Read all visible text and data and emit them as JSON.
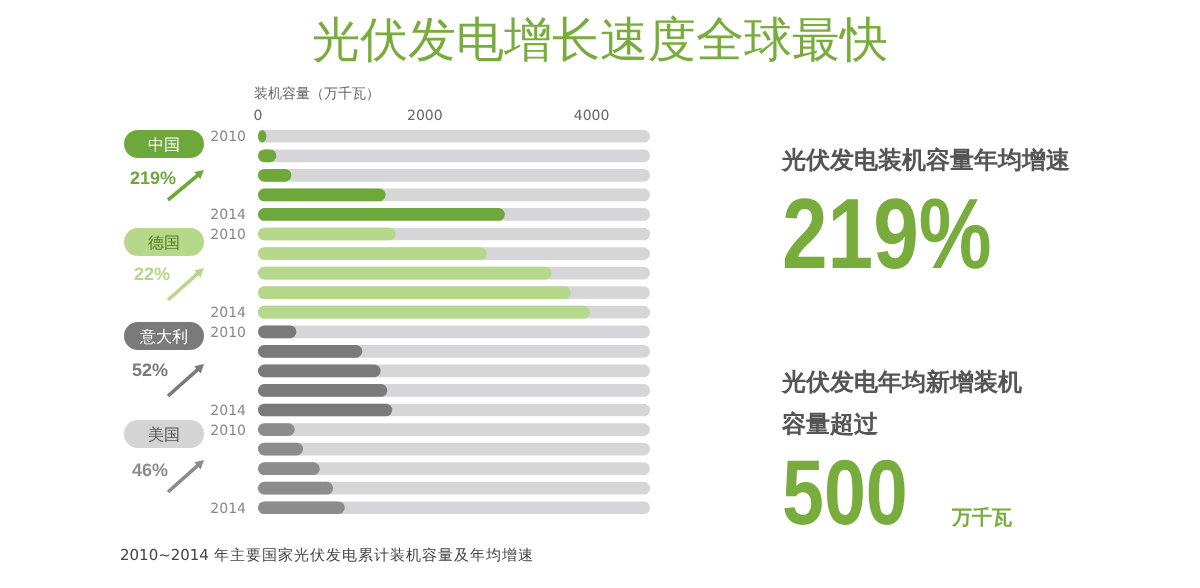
{
  "chart_data": {
    "type": "bar",
    "orientation": "horizontal",
    "title": "光伏发电增长速度全球最快",
    "xlabel": "装机容量（万千瓦）",
    "categories": [
      "2010",
      null,
      null,
      null,
      "2014",
      "2010",
      null,
      null,
      null,
      "2014",
      "2010",
      null,
      null,
      null,
      "2014",
      "2010",
      null,
      null,
      null,
      "2014"
    ],
    "values": [
      100,
      220,
      400,
      1530,
      2960,
      1650,
      2740,
      3520,
      3750,
      3980,
      460,
      1250,
      1470,
      1550,
      1610,
      440,
      540,
      740,
      900,
      1040
    ],
    "colors": [
      "#6fa83a",
      "#6fa83a",
      "#6fa83a",
      "#6fa83a",
      "#6fa83a",
      "#b5d88a",
      "#b5d88a",
      "#b5d88a",
      "#b5d88a",
      "#b5d88a",
      "#7a7a7a",
      "#7a7a7a",
      "#7a7a7a",
      "#7a7a7a",
      "#7a7a7a",
      "#8c8c8c",
      "#8c8c8c",
      "#8c8c8c",
      "#8c8c8c",
      "#8c8c8c"
    ],
    "xlim": [
      0,
      4700
    ],
    "xticks": [
      0,
      2000,
      4000
    ],
    "grid": false,
    "annotations": [
      "中国",
      "219%",
      "德国",
      "22%",
      "意大利",
      "52%",
      "美国",
      "46%",
      "光伏发电装机容量年均增速",
      "219%",
      "光伏发电年均新增装机",
      "容量超过",
      "500",
      "万千瓦",
      "2010~2014 年主要国家光伏发电累计装机容量及年均增速"
    ]
  }
}
